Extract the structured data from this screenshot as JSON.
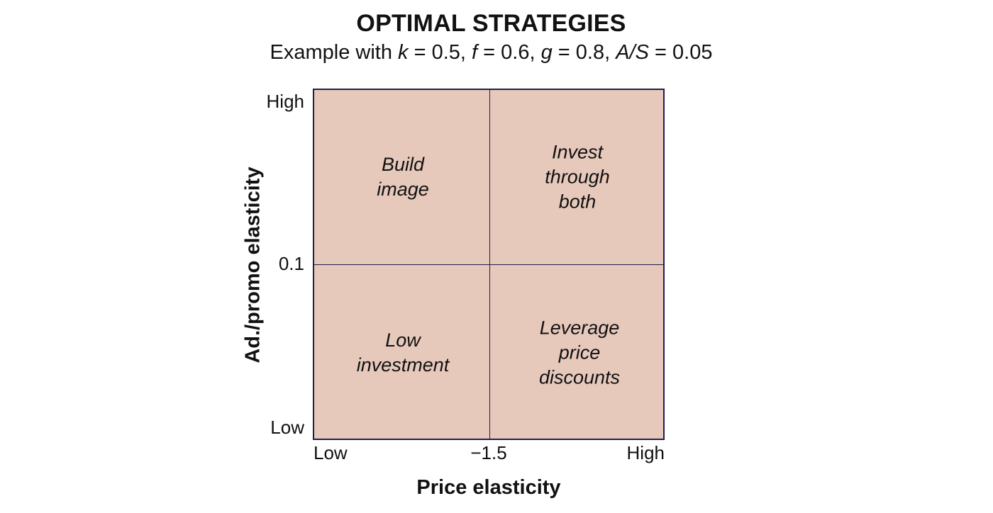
{
  "title": "OPTIMAL STRATEGIES",
  "subtitle": {
    "prefix": "Example with ",
    "params": [
      {
        "sym": "k",
        "eq": " = 0.5, "
      },
      {
        "sym": "f",
        "eq": " = 0.6, "
      },
      {
        "sym": "g",
        "eq": " = 0.8, "
      },
      {
        "sym": "A/S",
        "eq": " = 0.05"
      }
    ]
  },
  "quadrants": {
    "top_left": [
      "Build",
      "image"
    ],
    "top_right": [
      "Invest",
      "through",
      "both"
    ],
    "bottom_left": [
      "Low",
      "investment"
    ],
    "bottom_right": [
      "Leverage",
      "price",
      "discounts"
    ]
  },
  "y_axis": {
    "title": "Ad./promo elasticity",
    "high": "High",
    "mid": "0.1",
    "low": "Low"
  },
  "x_axis": {
    "title": "Price elasticity",
    "low": "Low",
    "mid": "−1.5",
    "high": "High"
  },
  "colors": {
    "fill": "#e7c9bc",
    "border": "#1c1f4d"
  }
}
